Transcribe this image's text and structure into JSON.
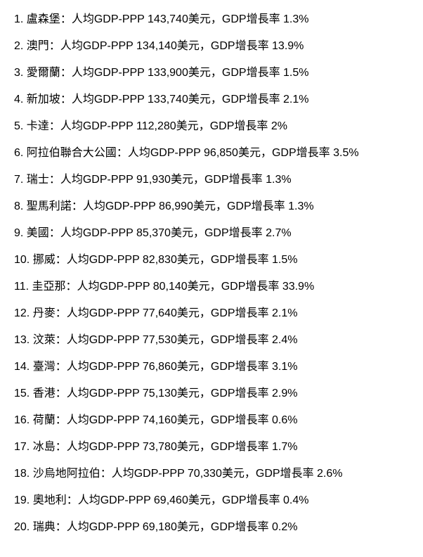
{
  "list": {
    "label_gdp_prefix": "人均GDP-PPP ",
    "label_gdp_suffix": "美元",
    "label_growth_prefix": "GDP增長率 ",
    "items": [
      {
        "country": "盧森堡",
        "gdp": "143,740",
        "growth": "1.3%"
      },
      {
        "country": "澳門",
        "gdp": "134,140",
        "growth": "13.9%"
      },
      {
        "country": "愛爾蘭",
        "gdp": "133,900",
        "growth": "1.5%"
      },
      {
        "country": "新加坡",
        "gdp": "133,740",
        "growth": "2.1%"
      },
      {
        "country": "卡達",
        "gdp": "112,280",
        "growth": "2%"
      },
      {
        "country": "阿拉伯聯合大公國",
        "gdp": "96,850",
        "growth": "3.5%"
      },
      {
        "country": "瑞士",
        "gdp": "91,930",
        "growth": "1.3%"
      },
      {
        "country": "聖馬利諾",
        "gdp": "86,990",
        "growth": "1.3%"
      },
      {
        "country": "美國",
        "gdp": "85,370",
        "growth": "2.7%"
      },
      {
        "country": "挪威",
        "gdp": "82,830",
        "growth": "1.5%"
      },
      {
        "country": "圭亞那",
        "gdp": "80,140",
        "growth": "33.9%"
      },
      {
        "country": "丹麥",
        "gdp": "77,640",
        "growth": "2.1%"
      },
      {
        "country": "汶萊",
        "gdp": "77,530",
        "growth": "2.4%"
      },
      {
        "country": "臺灣",
        "gdp": "76,860",
        "growth": "3.1%"
      },
      {
        "country": "香港",
        "gdp": "75,130",
        "growth": "2.9%"
      },
      {
        "country": "荷蘭",
        "gdp": "74,160",
        "growth": "0.6%"
      },
      {
        "country": "冰島",
        "gdp": "73,780",
        "growth": "1.7%"
      },
      {
        "country": "沙烏地阿拉伯",
        "gdp": "70,330",
        "growth": "2.6%"
      },
      {
        "country": "奧地利",
        "gdp": "69,460",
        "growth": "0.4%"
      },
      {
        "country": "瑞典",
        "gdp": "69,180",
        "growth": "0.2%"
      }
    ]
  }
}
